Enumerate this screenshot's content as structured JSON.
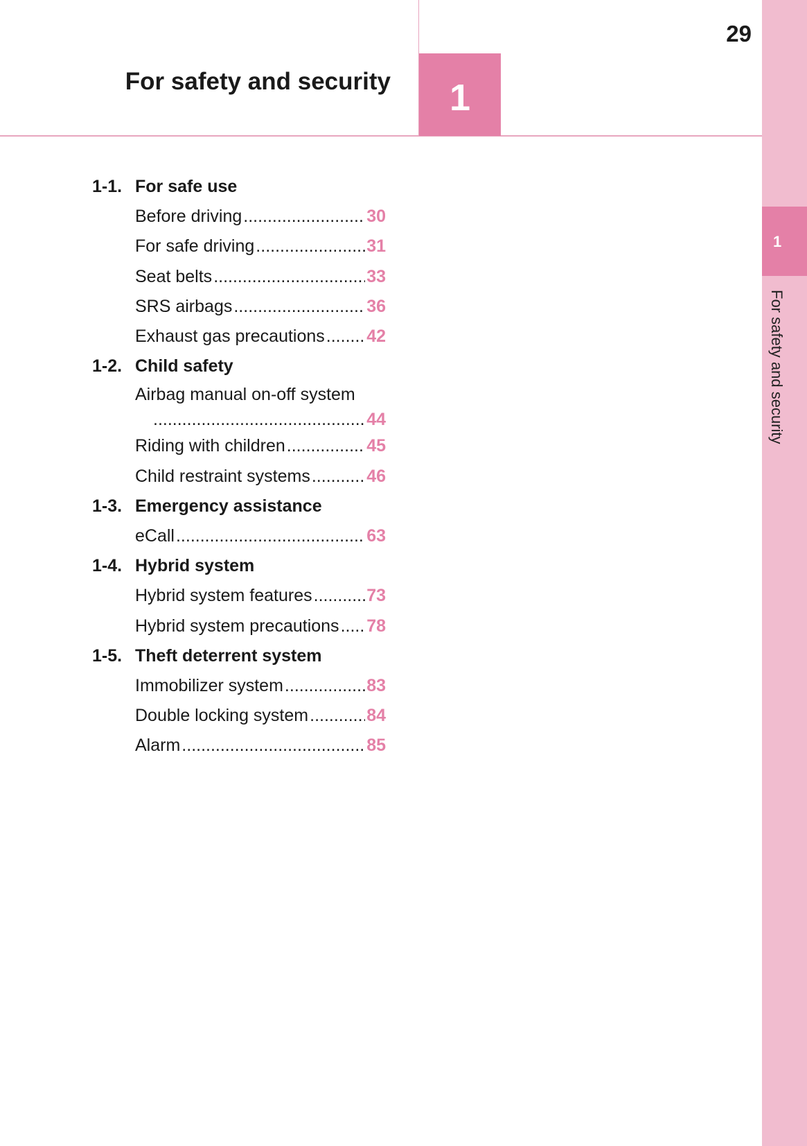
{
  "header": {
    "title": "For safety and security",
    "chapter_number": "1",
    "page_number": "29"
  },
  "side_tab": {
    "chapter_number": "1",
    "label": "For safety and security"
  },
  "colors": {
    "accent": "#e480a7",
    "side": "#f1bccf"
  },
  "toc": [
    {
      "num": "1-1.",
      "title": "For safe use",
      "items": [
        {
          "label": "Before driving",
          "page": "30"
        },
        {
          "label": "For safe driving",
          "page": "31"
        },
        {
          "label": "Seat belts",
          "page": "33"
        },
        {
          "label": "SRS airbags",
          "page": "36"
        },
        {
          "label": "Exhaust gas precautions",
          "page": "42"
        }
      ]
    },
    {
      "num": "1-2.",
      "title": "Child safety",
      "items": [
        {
          "label": "Airbag manual on-off system",
          "page": "44",
          "wrap": true
        },
        {
          "label": "Riding with children",
          "page": "45"
        },
        {
          "label": "Child restraint systems",
          "page": "46"
        }
      ]
    },
    {
      "num": "1-3.",
      "title": "Emergency assistance",
      "items": [
        {
          "label": "eCall",
          "page": "63"
        }
      ]
    },
    {
      "num": "1-4.",
      "title": "Hybrid system",
      "items": [
        {
          "label": "Hybrid system features",
          "page": "73"
        },
        {
          "label": "Hybrid system precautions",
          "page": "78"
        }
      ]
    },
    {
      "num": "1-5.",
      "title": "Theft deterrent system",
      "items": [
        {
          "label": "Immobilizer system",
          "page": "83"
        },
        {
          "label": "Double locking system",
          "page": "84"
        },
        {
          "label": "Alarm",
          "page": "85"
        }
      ]
    }
  ]
}
